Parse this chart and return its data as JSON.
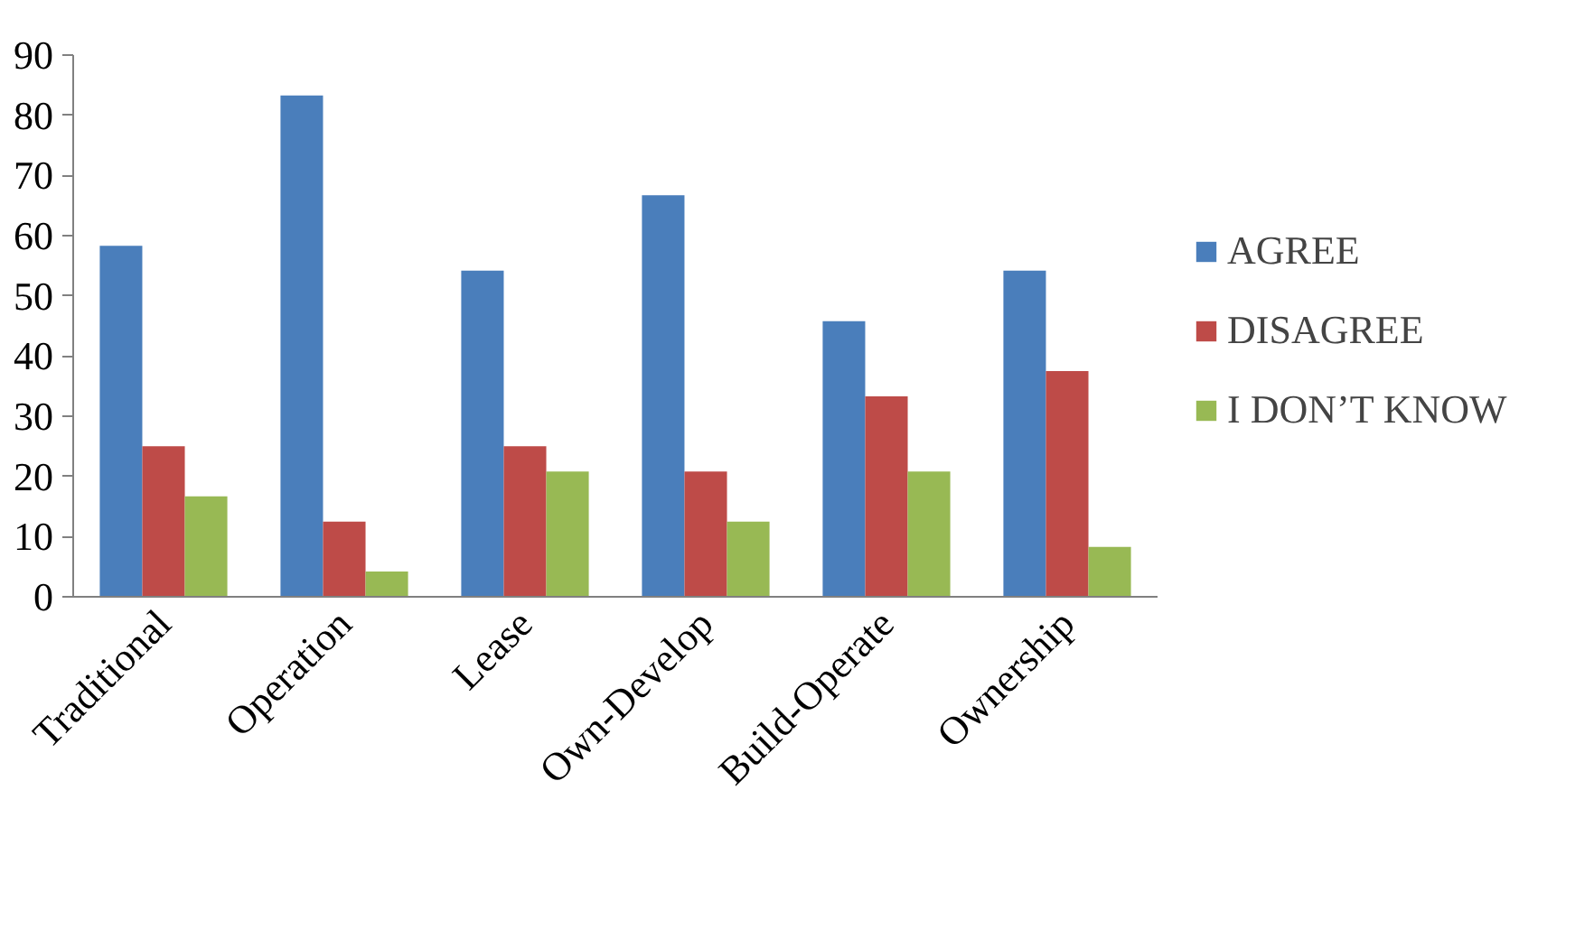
{
  "chart_data": {
    "type": "bar",
    "categories": [
      "Traditional",
      "Operation",
      "Lease",
      "Own-Develop",
      "Build-Operate",
      "Ownership"
    ],
    "series": [
      {
        "name": "AGREE",
        "color": "#4a7ebb",
        "values": [
          58.3,
          83.3,
          54.2,
          66.7,
          45.8,
          54.2
        ]
      },
      {
        "name": "DISAGREE",
        "color": "#be4b48",
        "values": [
          25,
          12.5,
          25,
          20.8,
          33.3,
          37.5
        ]
      },
      {
        "name": "I DON’T KNOW",
        "color": "#98b954",
        "values": [
          16.7,
          4.2,
          20.8,
          12.5,
          20.8,
          8.3
        ]
      }
    ],
    "ylim": [
      0,
      90
    ],
    "yticks": [
      0,
      10,
      20,
      30,
      40,
      50,
      60,
      70,
      80,
      90
    ],
    "grid": false,
    "legend": "right"
  }
}
